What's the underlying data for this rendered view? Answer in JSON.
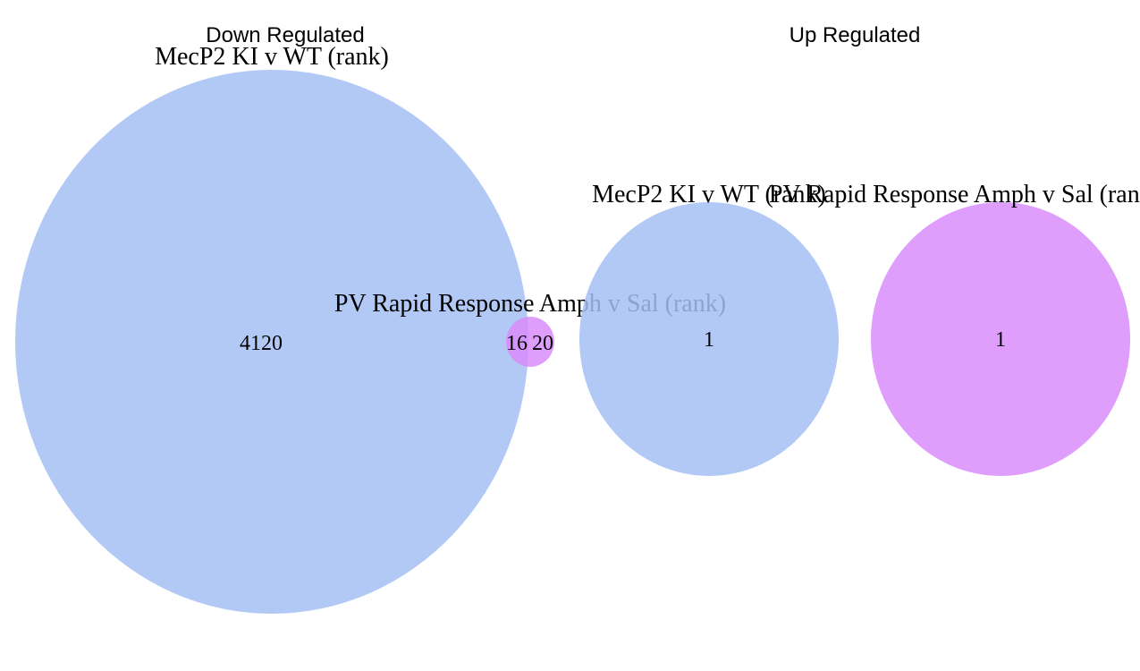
{
  "colors": {
    "mecp2_set": "#a4c0f4",
    "pv_set": "#d98cfc",
    "background": "#ffffff"
  },
  "panels": {
    "down": {
      "title": "Down Regulated",
      "mecp2_label": "MecP2  KI v WT (rank)",
      "pv_label": "PV Rapid Response Amph v Sal (rank)",
      "mecp2_only_count": "4120",
      "overlap_count": "16",
      "pv_only_count": "20"
    },
    "up": {
      "title": "Up Regulated",
      "mecp2_label": "MecP2  KI v WT (rank)",
      "pv_label": "PV Rapid Response Amph v Sal (rank)",
      "mecp2_only_count": "1",
      "pv_only_count": "1"
    }
  }
}
